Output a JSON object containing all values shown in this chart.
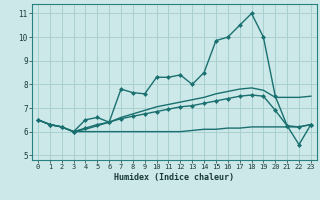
{
  "title": "",
  "xlabel": "Humidex (Indice chaleur)",
  "xlim": [
    -0.5,
    23.5
  ],
  "ylim": [
    4.8,
    11.4
  ],
  "yticks": [
    5,
    6,
    7,
    8,
    9,
    10,
    11
  ],
  "xticks": [
    0,
    1,
    2,
    3,
    4,
    5,
    6,
    7,
    8,
    9,
    10,
    11,
    12,
    13,
    14,
    15,
    16,
    17,
    18,
    19,
    20,
    21,
    22,
    23
  ],
  "bg_color": "#cce8e8",
  "grid_color": "#aad0d0",
  "line_color": "#1a7070",
  "line1": [
    6.5,
    6.3,
    6.2,
    6.0,
    6.5,
    6.6,
    6.4,
    7.8,
    7.65,
    7.6,
    8.3,
    8.3,
    8.4,
    8.0,
    8.5,
    9.85,
    10.0,
    10.5,
    11.0,
    10.0,
    7.5,
    6.25,
    6.2,
    6.3
  ],
  "line2": [
    6.5,
    6.3,
    6.2,
    6.0,
    6.0,
    6.0,
    6.0,
    6.0,
    6.0,
    6.0,
    6.0,
    6.0,
    6.0,
    6.05,
    6.1,
    6.1,
    6.15,
    6.15,
    6.2,
    6.2,
    6.2,
    6.2,
    6.2,
    6.3
  ],
  "line3": [
    6.5,
    6.3,
    6.2,
    6.0,
    6.15,
    6.3,
    6.4,
    6.55,
    6.65,
    6.75,
    6.85,
    6.95,
    7.05,
    7.1,
    7.2,
    7.3,
    7.4,
    7.5,
    7.55,
    7.5,
    6.9,
    6.25,
    5.45,
    6.3
  ],
  "line4": [
    6.5,
    6.3,
    6.2,
    6.0,
    6.1,
    6.25,
    6.4,
    6.6,
    6.75,
    6.9,
    7.05,
    7.15,
    7.25,
    7.35,
    7.45,
    7.6,
    7.7,
    7.8,
    7.85,
    7.75,
    7.45,
    7.45,
    7.45,
    7.5
  ]
}
